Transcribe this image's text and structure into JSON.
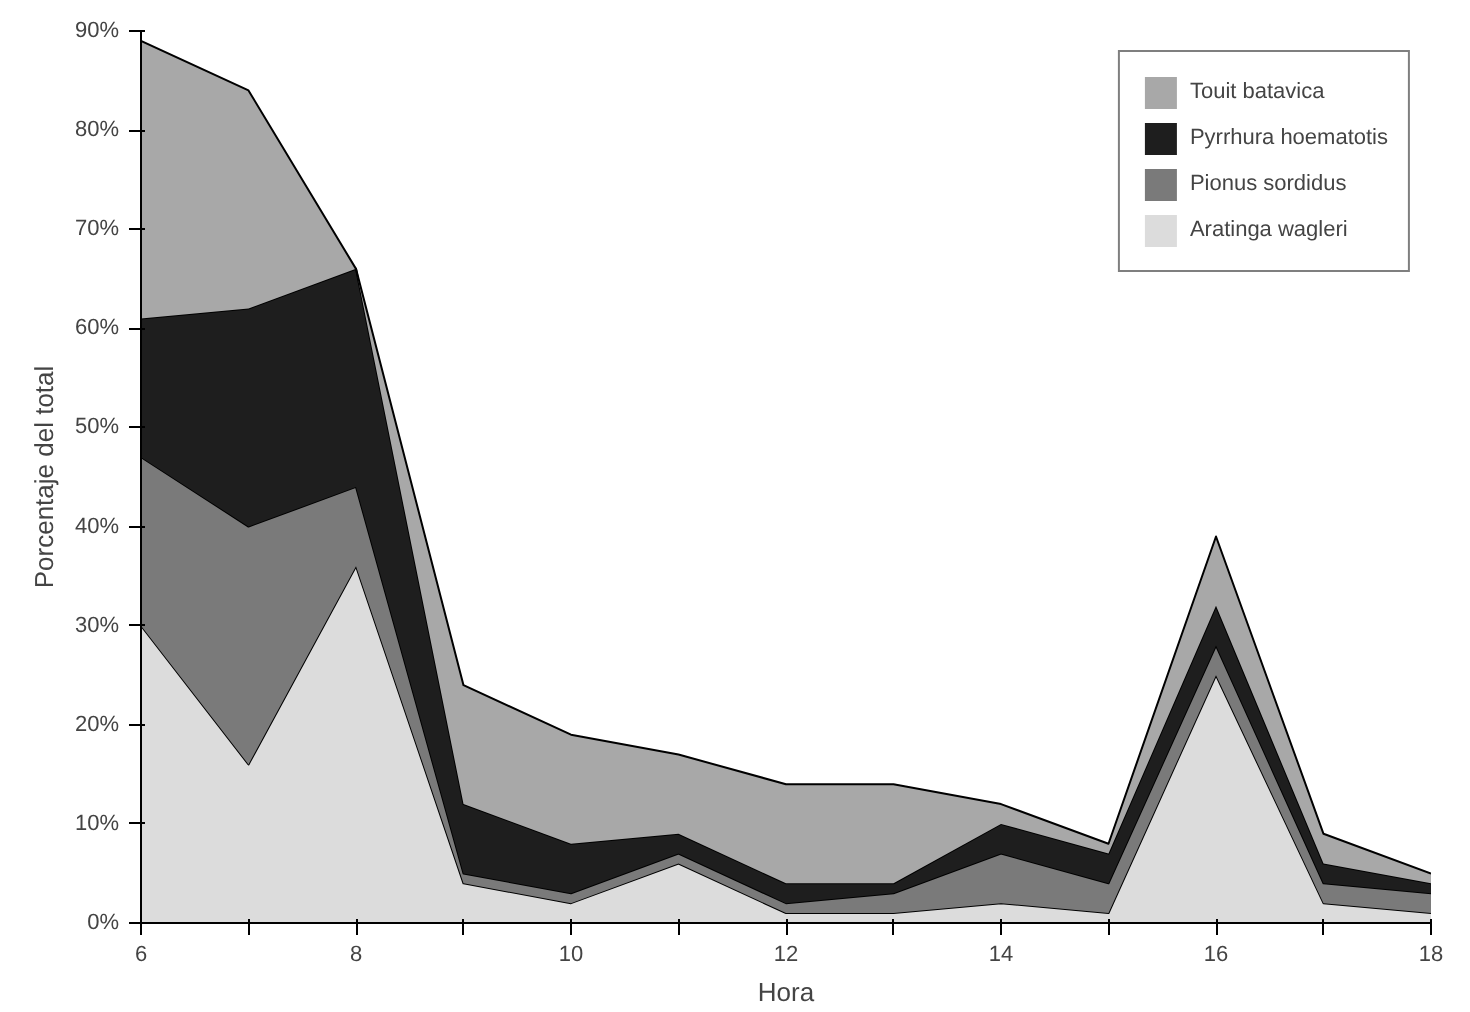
{
  "chart_data": {
    "type": "area",
    "stacked": true,
    "xlabel": "Hora",
    "ylabel": "Porcentaje del total",
    "x": [
      6,
      7,
      8,
      9,
      10,
      11,
      12,
      13,
      14,
      15,
      16,
      17,
      18
    ],
    "series": [
      {
        "name": "Aratinga wagleri",
        "color": "#dcdcdc",
        "values": [
          30,
          16,
          36,
          4,
          2,
          6,
          1,
          1,
          2,
          1,
          25,
          2,
          1
        ]
      },
      {
        "name": "Pionus sordidus",
        "color": "#7a7a7a",
        "values": [
          17,
          24,
          8,
          1,
          1,
          1,
          1,
          2,
          5,
          3,
          3,
          2,
          2
        ]
      },
      {
        "name": "Pyrrhura hoematotis",
        "color": "#1e1e1e",
        "values": [
          14,
          22,
          22,
          7,
          5,
          2,
          2,
          1,
          3,
          3,
          4,
          2,
          1
        ]
      },
      {
        "name": "Touit batavica",
        "color": "#a8a8a8",
        "values": [
          28,
          22,
          0,
          12,
          11,
          8,
          10,
          10,
          2,
          1,
          7,
          3,
          1
        ]
      }
    ],
    "xlim": [
      6,
      18
    ],
    "ylim": [
      0,
      90
    ],
    "xticks": [
      6,
      {
        "value": 7,
        "label": null
      },
      8,
      {
        "value": 9,
        "label": null
      },
      10,
      {
        "value": 11,
        "label": null
      },
      12,
      {
        "value": 13,
        "label": null
      },
      14,
      {
        "value": 15,
        "label": null
      },
      16,
      {
        "value": 17,
        "label": null
      },
      18
    ],
    "yticks": [
      {
        "value": 0,
        "label": "0%"
      },
      {
        "value": 10,
        "label": "10%"
      },
      {
        "value": 20,
        "label": "20%"
      },
      {
        "value": 30,
        "label": "30%"
      },
      {
        "value": 40,
        "label": "40%"
      },
      {
        "value": 50,
        "label": "50%"
      },
      {
        "value": 60,
        "label": "60%"
      },
      {
        "value": 70,
        "label": "70%"
      },
      {
        "value": 80,
        "label": "80%"
      },
      {
        "value": 90,
        "label": "90%"
      }
    ],
    "grid": false,
    "legend": "top right"
  }
}
